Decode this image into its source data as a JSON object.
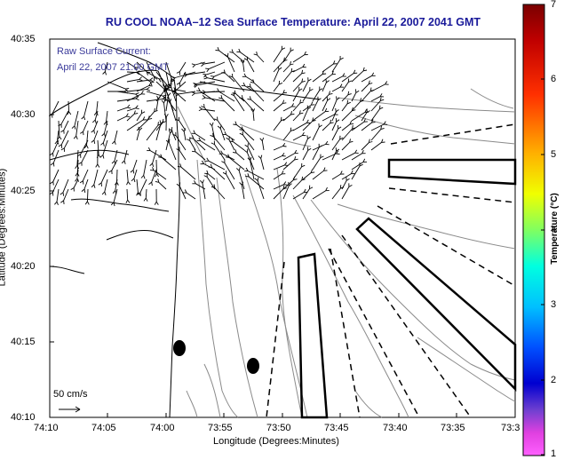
{
  "title": "RU COOL  NOAA–12  Sea Surface Temperature:  April 22, 2007 2041 GMT",
  "annotation": {
    "line1": "Raw Surface Current:",
    "line2": "April 22, 2007 21:00 GMT",
    "scale_label": "50 cm/s"
  },
  "axes": {
    "xlabel": "Longitude (Degrees:Minutes)",
    "ylabel": "Latitude (Degrees:Minutes)",
    "xticks": [
      "74:10",
      "74:05",
      "74:00",
      "73:55",
      "73:50",
      "73:45",
      "73:40",
      "73:35",
      "73:3"
    ],
    "yticks": [
      "40:35",
      "40:30",
      "40:25",
      "40:20",
      "40:15",
      "40:10"
    ]
  },
  "colorbar": {
    "label": "Temperature (°C)",
    "ticks": [
      "7",
      "6",
      "5",
      "4",
      "3",
      "2",
      "1"
    ],
    "range": [
      1,
      7
    ]
  },
  "colors": {
    "title": "#1a1a9a",
    "annotation": "#3a3a9a",
    "coastline": "#000000",
    "bathymetry": "#808080"
  }
}
